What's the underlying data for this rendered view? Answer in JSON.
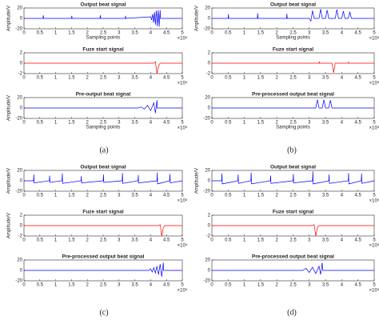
{
  "panel_labels": [
    "(a)",
    "(b)",
    "(c)",
    "(d)"
  ],
  "chart_data": [
    {
      "type": "line",
      "title": "Output beat signal",
      "xlabel": "Sampling points",
      "ylabel": "Amplitude/V",
      "x_multiplier": "×10⁵",
      "color": "#0000ff",
      "x": [
        0,
        0.6,
        0.61,
        0.62,
        1.5,
        1.51,
        1.52,
        2.4,
        2.41,
        2.42,
        3.2,
        3.21,
        3.22,
        4.0,
        4.03,
        4.06,
        4.09,
        4.12,
        4.15,
        4.18,
        4.21,
        4.24,
        4.27,
        4.3,
        4.31,
        5
      ],
      "values": [
        0,
        0,
        6,
        0,
        0,
        5,
        0,
        0,
        6,
        0,
        0,
        5,
        0,
        3,
        -3,
        8,
        -8,
        12,
        -12,
        15,
        -15,
        16,
        -16,
        16,
        0,
        0
      ],
      "xlim": [
        0,
        5
      ],
      "xticks": [
        0,
        0.5,
        1,
        1.5,
        2,
        2.5,
        3,
        3.5,
        4,
        4.5,
        5
      ],
      "ylim": [
        -20,
        20
      ],
      "yticks": [
        -20,
        0,
        20
      ]
    },
    {
      "type": "line",
      "title": "Fuze start signal",
      "x_multiplier": "×10⁵",
      "color": "#ff0000",
      "x": [
        0,
        4.1,
        4.15,
        4.2,
        4.25,
        4.3,
        5
      ],
      "values": [
        0,
        0,
        0.3,
        -2,
        -0.5,
        0,
        0
      ],
      "xlim": [
        0,
        5
      ],
      "xticks": [
        0,
        0.5,
        1,
        1.5,
        2,
        2.5,
        3,
        3.5,
        4,
        4.5,
        5
      ],
      "ylim": [
        -2,
        2
      ],
      "yticks": [
        -2,
        0,
        2
      ]
    },
    {
      "type": "line",
      "title": "Pre-output beat signal",
      "xlabel": "Sampling points",
      "ylabel": "Amplitude/V",
      "x_multiplier": "×10⁵",
      "color": "#0000ff",
      "x": [
        0,
        3.6,
        3.7,
        3.8,
        3.9,
        4.0,
        4.1,
        4.15,
        4.2,
        4.21,
        5
      ],
      "values": [
        0,
        0,
        2,
        -2,
        5,
        -5,
        10,
        -10,
        15,
        0,
        0
      ],
      "xlim": [
        0,
        5
      ],
      "xticks": [
        0,
        0.5,
        1,
        1.5,
        2,
        2.5,
        3,
        3.5,
        4,
        4.5,
        5
      ],
      "ylim": [
        -20,
        20
      ],
      "yticks": [
        -20,
        0,
        20
      ]
    },
    {
      "type": "line",
      "title": "Output beat signal",
      "xlabel": "Sampling points",
      "ylabel": "Amplitude/V",
      "x_multiplier": "×10⁵",
      "color": "#0000ff",
      "x": [
        0,
        0.5,
        0.51,
        0.52,
        1.4,
        1.41,
        1.42,
        2.3,
        2.31,
        2.32,
        3.0,
        3.05,
        3.1,
        3.15,
        3.3,
        3.35,
        3.4,
        3.5,
        3.55,
        3.6,
        3.8,
        3.85,
        3.9,
        4.0,
        4.05,
        4.1,
        4.2,
        4.25,
        4.3,
        5
      ],
      "values": [
        0,
        0,
        8,
        0,
        0,
        10,
        0,
        0,
        9,
        0,
        0,
        -5,
        15,
        0,
        0,
        18,
        0,
        0,
        16,
        0,
        0,
        17,
        0,
        0,
        14,
        0,
        0,
        12,
        0,
        0
      ],
      "xlim": [
        0,
        5
      ],
      "xticks": [
        0,
        0.5,
        1,
        1.5,
        2,
        2.5,
        3,
        3.5,
        4,
        4.5,
        5
      ],
      "ylim": [
        -20,
        20
      ],
      "yticks": [
        -20,
        0,
        20
      ]
    },
    {
      "type": "line",
      "title": "Fuze start signal",
      "x_multiplier": "×10⁵",
      "color": "#ff0000",
      "x": [
        0,
        3.3,
        3.31,
        3.32,
        3.7,
        3.75,
        3.8,
        4.2,
        4.21,
        4.22,
        5
      ],
      "values": [
        0,
        0,
        0.3,
        0,
        0,
        -1.8,
        0,
        0,
        0.2,
        0,
        0
      ],
      "xlim": [
        0,
        5
      ],
      "xticks": [
        0,
        0.5,
        1,
        1.5,
        2,
        2.5,
        3,
        3.5,
        4,
        4.5,
        5
      ],
      "ylim": [
        -2,
        2
      ],
      "yticks": [
        -2,
        0,
        2
      ]
    },
    {
      "type": "line",
      "title": "Pre-processed output beat signal",
      "xlabel": "Sampling points",
      "x_multiplier": "×10⁵",
      "color": "#0000ff",
      "x": [
        0,
        3.2,
        3.25,
        3.3,
        3.4,
        3.45,
        3.5,
        3.6,
        3.65,
        3.7,
        3.8,
        5
      ],
      "values": [
        0,
        0,
        16,
        0,
        0,
        16,
        0,
        0,
        15,
        0,
        0,
        0
      ],
      "xlim": [
        0,
        5
      ],
      "xticks": [
        0,
        0.5,
        1,
        1.5,
        2,
        2.5,
        3,
        3.5,
        4,
        4.5,
        5
      ],
      "ylim": [
        -20,
        20
      ],
      "yticks": [
        -20,
        0,
        20
      ]
    },
    {
      "type": "line",
      "title": "Output beat signal",
      "ylabel": "Amplitude/V",
      "x_multiplier": "×10⁵",
      "color": "#0000ff",
      "x": [
        0,
        0.3,
        0.31,
        0.32,
        0.8,
        0.81,
        0.82,
        1.2,
        1.21,
        1.22,
        1.8,
        1.81,
        1.82,
        2.5,
        2.51,
        2.52,
        3.1,
        3.11,
        3.12,
        3.6,
        3.61,
        3.62,
        4.2,
        4.21,
        4.22,
        4.6,
        4.61,
        4.62,
        5
      ],
      "values": [
        0,
        0,
        12,
        -4,
        0,
        10,
        -3,
        0,
        14,
        -5,
        0,
        9,
        -4,
        0,
        12,
        -3,
        0,
        15,
        -5,
        0,
        11,
        -4,
        0,
        16,
        -6,
        0,
        13,
        -4,
        0
      ],
      "xlim": [
        0,
        5
      ],
      "xticks": [
        0,
        0.5,
        1,
        1.5,
        2,
        2.5,
        3,
        3.5,
        4,
        4.5,
        5
      ],
      "ylim": [
        -20,
        20
      ],
      "yticks": [
        -20,
        0,
        20
      ]
    },
    {
      "type": "line",
      "title": "Fuze start signal",
      "ylabel": "Amplitude/V",
      "x_multiplier": "×10⁵",
      "color": "#ff0000",
      "x": [
        0,
        4.25,
        4.3,
        4.35,
        4.4,
        4.45,
        5
      ],
      "values": [
        0,
        0,
        0.2,
        -2,
        -0.4,
        0,
        0
      ],
      "xlim": [
        0,
        5
      ],
      "xticks": [
        0,
        0.5,
        1,
        1.5,
        2,
        2.5,
        3,
        3.5,
        4,
        4.5,
        5
      ],
      "ylim": [
        -2,
        2
      ],
      "yticks": [
        -2,
        0,
        2
      ]
    },
    {
      "type": "line",
      "title": "Pre-processed output beat signal",
      "x_multiplier": "×10⁵",
      "color": "#0000ff",
      "x": [
        0,
        3.95,
        4.0,
        4.05,
        4.1,
        4.15,
        4.2,
        4.25,
        4.3,
        4.35,
        4.4,
        4.41,
        5
      ],
      "values": [
        0,
        0,
        3,
        -3,
        5,
        -5,
        8,
        -8,
        12,
        -12,
        15,
        0,
        0
      ],
      "xlim": [
        0,
        5
      ],
      "xticks": [
        0,
        0.5,
        1,
        1.5,
        2,
        2.5,
        3,
        3.5,
        4,
        4.5,
        5
      ],
      "ylim": [
        -20,
        20
      ],
      "yticks": [
        -20,
        0,
        20
      ]
    },
    {
      "type": "line",
      "title": "Output beat signal",
      "ylabel": "Amplitude/V",
      "x_multiplier": "×10⁵",
      "color": "#0000ff",
      "x": [
        0,
        0.3,
        0.31,
        0.32,
        0.8,
        0.81,
        0.82,
        1.2,
        1.21,
        1.22,
        1.8,
        1.81,
        1.82,
        2.5,
        2.51,
        2.52,
        3.1,
        3.11,
        3.12,
        3.6,
        3.61,
        3.62,
        4.2,
        4.21,
        4.22,
        4.6,
        4.61,
        4.62,
        5
      ],
      "values": [
        0,
        0,
        14,
        -6,
        0,
        12,
        -5,
        0,
        16,
        -6,
        0,
        10,
        -5,
        0,
        13,
        -4,
        0,
        18,
        -6,
        0,
        12,
        -5,
        0,
        15,
        -6,
        0,
        14,
        -5,
        0
      ],
      "xlim": [
        0,
        5
      ],
      "xticks": [
        0,
        0.5,
        1,
        1.5,
        2,
        2.5,
        3,
        3.5,
        4,
        4.5,
        5
      ],
      "ylim": [
        -20,
        20
      ],
      "yticks": [
        -20,
        0,
        20
      ]
    },
    {
      "type": "line",
      "title": "Fuze start signal",
      "x_multiplier": "×10⁵",
      "color": "#ff0000",
      "x": [
        0,
        3.1,
        3.15,
        3.2,
        3.25,
        3.3,
        5
      ],
      "values": [
        0,
        0,
        0.2,
        -2,
        -0.4,
        0,
        0
      ],
      "xlim": [
        0,
        5
      ],
      "xticks": [
        0,
        0.5,
        1,
        1.5,
        2,
        2.5,
        3,
        3.5,
        4,
        4.5,
        5
      ],
      "ylim": [
        -2,
        2
      ],
      "yticks": [
        -2,
        0,
        2
      ]
    },
    {
      "type": "line",
      "title": "Pre-processed output beat signal",
      "x_multiplier": "×10⁵",
      "color": "#0000ff",
      "x": [
        0,
        2.8,
        2.9,
        3.0,
        3.1,
        3.2,
        3.3,
        3.35,
        3.4,
        3.41,
        5
      ],
      "values": [
        0,
        0,
        4,
        -4,
        6,
        -6,
        8,
        -8,
        15,
        0,
        0
      ],
      "xlim": [
        0,
        5
      ],
      "xticks": [
        0,
        0.5,
        1,
        1.5,
        2,
        2.5,
        3,
        3.5,
        4,
        4.5,
        5
      ],
      "ylim": [
        -20,
        20
      ],
      "yticks": [
        -20,
        0,
        20
      ]
    }
  ]
}
